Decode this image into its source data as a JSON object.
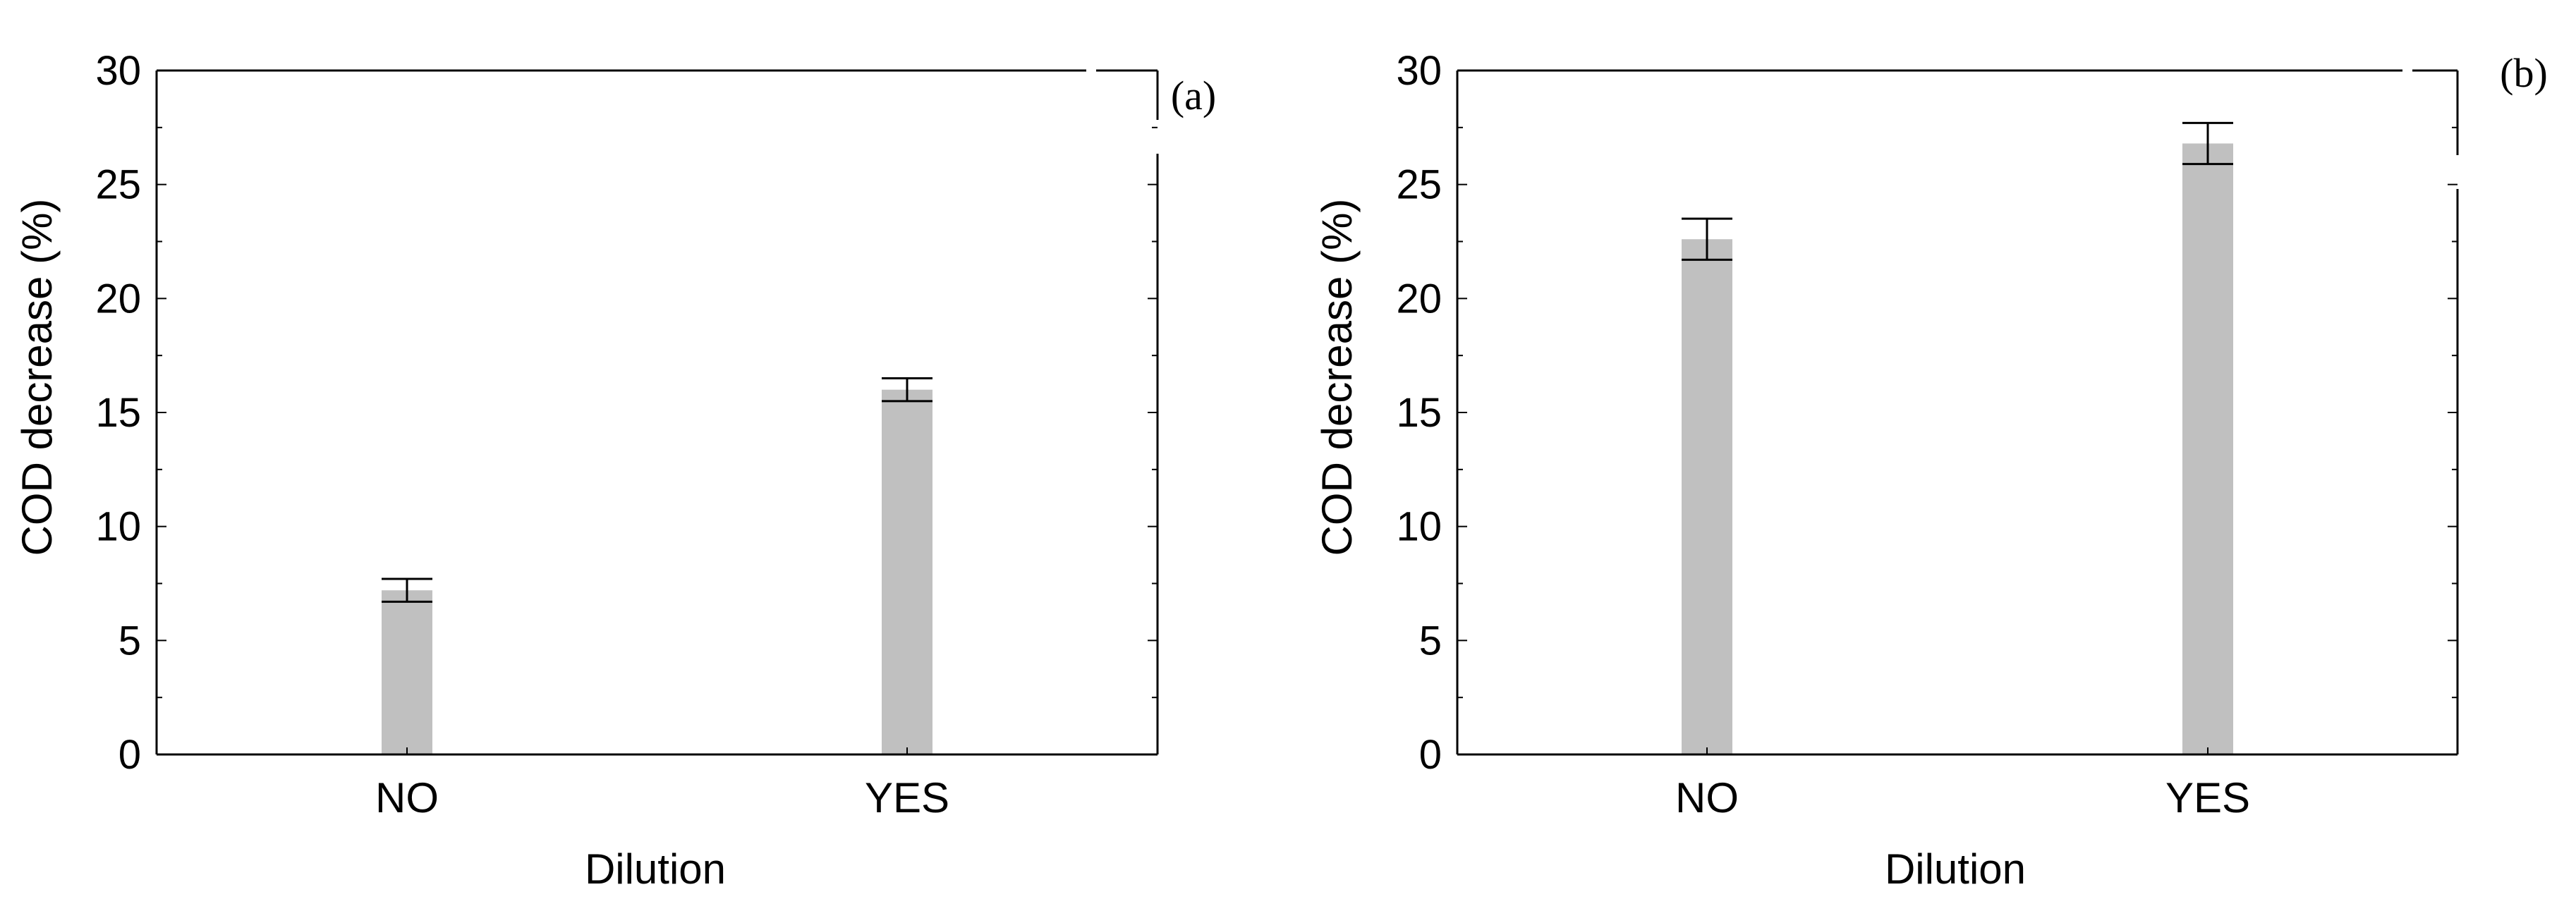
{
  "colors": {
    "bar": "#c0c0c0",
    "axis": "#000000",
    "errorbar": "#000000",
    "background": "#ffffff"
  },
  "chart_data": [
    {
      "type": "bar",
      "panel_label": "(a)",
      "title": "",
      "xlabel": "Dilution",
      "ylabel": "COD decrease (%)",
      "categories": [
        "NO",
        "YES"
      ],
      "values": [
        7.2,
        16.0
      ],
      "error_low": [
        6.7,
        15.5
      ],
      "error_high": [
        7.7,
        16.5
      ],
      "ylim": [
        0,
        30
      ],
      "yticks": [
        0,
        5,
        10,
        15,
        20,
        25,
        30
      ],
      "grid": false
    },
    {
      "type": "bar",
      "panel_label": "(b)",
      "title": "",
      "xlabel": "Dilution",
      "ylabel": "COD decrease (%)",
      "categories": [
        "NO",
        "YES"
      ],
      "values": [
        22.6,
        26.8
      ],
      "error_low": [
        21.7,
        25.9
      ],
      "error_high": [
        23.5,
        27.7
      ],
      "ylim": [
        0,
        30
      ],
      "yticks": [
        0,
        5,
        10,
        15,
        20,
        25,
        30
      ],
      "grid": false
    }
  ]
}
